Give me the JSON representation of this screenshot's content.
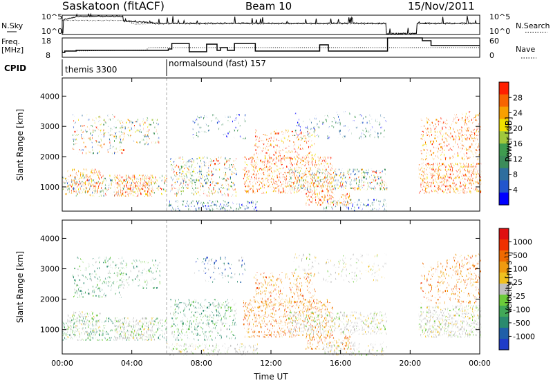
{
  "header": {
    "radar": "Saskatoon (fitACF)",
    "beam": "Beam 10",
    "date": "15/Nov/2011"
  },
  "top_panel": {
    "left_label": "N.Sky",
    "right_label": "N.Search",
    "left_ticks": [
      "10^5",
      "10^0"
    ],
    "right_ticks": [
      "10^5",
      "10^0"
    ]
  },
  "freq_panel": {
    "left_label_line1": "Freq.",
    "left_label_line2": "[MHz]",
    "right_label": "Nave",
    "left_ticks": [
      "18",
      "8"
    ],
    "right_ticks": [
      "60",
      "0"
    ]
  },
  "cpid": {
    "label": "CPID",
    "programs": [
      {
        "name": "themis 3300",
        "start_hour": 0.0
      },
      {
        "name": "normalsound (fast) 157",
        "start_hour": 6.0
      }
    ]
  },
  "chart_data": [
    {
      "type": "heatmap",
      "title": "Power",
      "ylabel": "Slant Range [km]",
      "xlabel": "",
      "ylim": [
        200,
        4600
      ],
      "xlim": [
        0,
        24
      ],
      "yticks": [
        1000,
        2000,
        3000,
        4000
      ],
      "colorbar": {
        "label": "Power [dB]",
        "ticks": [
          "4",
          "8",
          "12",
          "16",
          "20",
          "24",
          "28"
        ],
        "colors": [
          "#0000ff",
          "#2255cc",
          "#2e6e9e",
          "#3c8c5a",
          "#3f9c4f",
          "#a0c83c",
          "#f0e000",
          "#f8a000",
          "#f86400",
          "#ff2000"
        ]
      }
    },
    {
      "type": "heatmap",
      "title": "Velocity",
      "ylabel": "Slant Range [km]",
      "xlabel": "Time UT",
      "ylim": [
        200,
        4600
      ],
      "xlim": [
        0,
        24
      ],
      "yticks": [
        1000,
        2000,
        3000,
        4000
      ],
      "xticks": [
        "00:00",
        "04:00",
        "08:00",
        "12:00",
        "16:00",
        "20:00",
        "00:00"
      ],
      "colorbar": {
        "label": "Velocity [m s^-1]",
        "ticks": [
          "1000",
          "500",
          "100",
          "25",
          "-25",
          "-100",
          "-500",
          "-1000"
        ],
        "colors": [
          "#1e3cc8",
          "#1f5fa8",
          "#2a8a6e",
          "#42a858",
          "#6ccb3a",
          "#c0c0c0",
          "#f0c020",
          "#f09a10",
          "#f06a00",
          "#f03000",
          "#e01010"
        ]
      }
    }
  ]
}
